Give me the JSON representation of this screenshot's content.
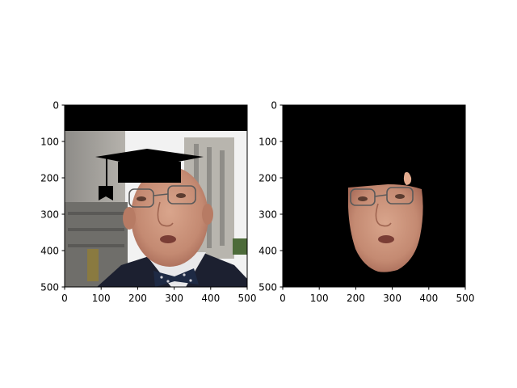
{
  "chart_data": [
    {
      "type": "image",
      "xlim": [
        0,
        500
      ],
      "ylim": [
        500,
        0
      ],
      "xticks": [
        0,
        100,
        200,
        300,
        400,
        500
      ],
      "yticks": [
        0,
        100,
        200,
        300,
        400,
        500
      ],
      "xtick_labels": [
        "0",
        "100",
        "200",
        "300",
        "400",
        "500"
      ],
      "ytick_labels": [
        "0",
        "100",
        "200",
        "300",
        "400",
        "500"
      ],
      "content": "photo-with-graduation-cap"
    },
    {
      "type": "image",
      "xlim": [
        0,
        500
      ],
      "ylim": [
        500,
        0
      ],
      "xticks": [
        0,
        100,
        200,
        300,
        400,
        500
      ],
      "yticks": [
        0,
        100,
        200,
        300,
        400,
        500
      ],
      "xtick_labels": [
        "0",
        "100",
        "200",
        "300",
        "400",
        "500"
      ],
      "ytick_labels": [
        "0",
        "100",
        "200",
        "300",
        "400",
        "500"
      ],
      "content": "segmented-face-mask"
    }
  ],
  "colors": {
    "background": "#000000",
    "skin": "#c9907a",
    "sky": "#f4f4f4",
    "building": "#a3a09b",
    "suit": "#1c2030"
  }
}
